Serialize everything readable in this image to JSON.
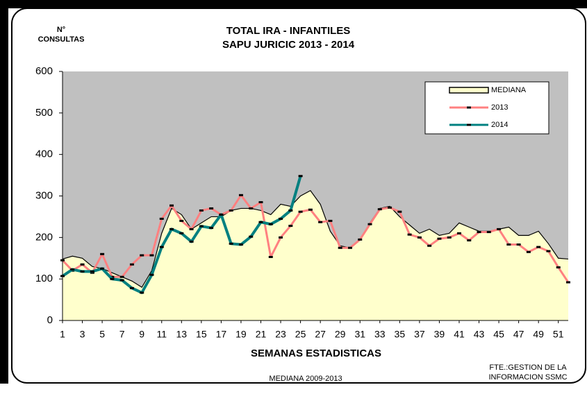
{
  "chart_data": {
    "type": "line",
    "title": "TOTAL IRA -  INFANTILES",
    "subtitle": "SAPU JURICIC  2013 - 2014",
    "y_label": [
      "N°",
      "CONSULTAS"
    ],
    "x_label": "SEMANAS ESTADISTICAS",
    "annotations": [
      "MEDIANA 2009-2013",
      "FTE.:GESTION DE LA",
      "INFORMACION  SSMC"
    ],
    "x": [
      1,
      2,
      3,
      4,
      5,
      6,
      7,
      8,
      9,
      10,
      11,
      12,
      13,
      14,
      15,
      16,
      17,
      18,
      19,
      20,
      21,
      22,
      23,
      24,
      25,
      26,
      27,
      28,
      29,
      30,
      31,
      32,
      33,
      34,
      35,
      36,
      37,
      38,
      39,
      40,
      41,
      42,
      43,
      44,
      45,
      46,
      47,
      48,
      49,
      50,
      51,
      52
    ],
    "xlim": [
      1,
      52
    ],
    "xticks": [
      1,
      3,
      5,
      7,
      9,
      11,
      13,
      15,
      17,
      19,
      21,
      23,
      25,
      27,
      29,
      31,
      33,
      35,
      37,
      39,
      41,
      43,
      45,
      47,
      49,
      51
    ],
    "ylim": [
      0,
      600
    ],
    "yticks": [
      0,
      100,
      200,
      300,
      400,
      500,
      600
    ],
    "plot_background": "#c0c0c0",
    "legend": "top-right",
    "series": [
      {
        "name": "MEDIANA",
        "style": "area",
        "color": "#ffffcc",
        "line_color": "#000000",
        "values": [
          148,
          155,
          150,
          130,
          125,
          115,
          105,
          95,
          80,
          120,
          210,
          270,
          255,
          220,
          235,
          250,
          250,
          265,
          270,
          270,
          265,
          255,
          280,
          275,
          300,
          313,
          280,
          215,
          180,
          175,
          195,
          235,
          270,
          275,
          250,
          230,
          210,
          220,
          205,
          210,
          235,
          225,
          215,
          215,
          220,
          225,
          205,
          205,
          215,
          185,
          150,
          148
        ]
      },
      {
        "name": "2013",
        "style": "line",
        "color": "#ff8080",
        "values": [
          145,
          120,
          135,
          115,
          160,
          105,
          105,
          135,
          157,
          157,
          245,
          277,
          240,
          220,
          265,
          270,
          255,
          265,
          302,
          270,
          285,
          153,
          200,
          228,
          262,
          267,
          237,
          240,
          175,
          175,
          195,
          232,
          268,
          272,
          262,
          207,
          200,
          180,
          197,
          200,
          210,
          193,
          213,
          213,
          220,
          183,
          183,
          165,
          177,
          167,
          128,
          92
        ]
      },
      {
        "name": "2014",
        "style": "line",
        "color": "#008080",
        "values": [
          107,
          123,
          118,
          118,
          125,
          100,
          97,
          78,
          67,
          110,
          177,
          220,
          210,
          190,
          227,
          223,
          255,
          185,
          183,
          202,
          237,
          232,
          245,
          265,
          348,
          null,
          null,
          null,
          null,
          null,
          null,
          null,
          null,
          null,
          null,
          null,
          null,
          null,
          null,
          null,
          null,
          null,
          null,
          null,
          null,
          null,
          null,
          null,
          null,
          null,
          null,
          null
        ]
      }
    ]
  }
}
